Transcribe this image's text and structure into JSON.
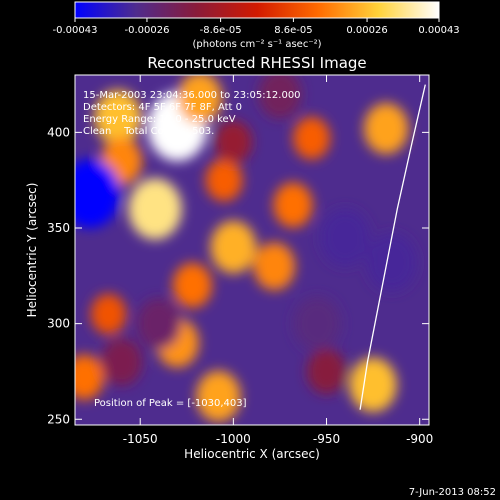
{
  "colorbar": {
    "ticks": [
      "-0.00043",
      "-0.00026",
      "-8.6e-05",
      "8.6e-05",
      "0.00026",
      "0.00043"
    ],
    "tick_values": [
      -0.00043,
      -0.00026,
      -8.6e-05,
      8.6e-05,
      0.00026,
      0.00043
    ],
    "range": [
      -0.00043,
      0.00043
    ],
    "unit_label": "(photons cm⁻² s⁻¹ asec⁻²)",
    "colors": [
      "#0000ff",
      "#4e2c8e",
      "#8a1b3a",
      "#d21a00",
      "#ff6a00",
      "#ffd23a",
      "#ffffff"
    ]
  },
  "chart_data": {
    "type": "heatmap",
    "title": "Reconstructed RHESSI Image",
    "xlabel": "Heliocentric X (arcsec)",
    "ylabel": "Heliocentric Y (arcsec)",
    "xlim": [
      -1085,
      -895
    ],
    "ylim": [
      247,
      430
    ],
    "xticks": [
      "-1050",
      "-1000",
      "-950",
      "-900"
    ],
    "xtick_values": [
      -1050,
      -1000,
      -950,
      -900
    ],
    "yticks": [
      "250",
      "300",
      "350",
      "400"
    ],
    "ytick_values": [
      250,
      300,
      350,
      400
    ],
    "info_lines": [
      "15-Mar-2003 23:04:36.000 to 23:05:12.000",
      "Detectors: 4F 5F 6F 7F 8F, Att 0",
      "Energy Range: 12.0 - 25.0 keV",
      "Clean    Total Counts: 503."
    ],
    "peak_label": "Position of Peak = [-1030,403]",
    "peak": [
      -1030,
      403
    ],
    "blobs": [
      {
        "x": -1030,
        "y": 403,
        "v": 0.00043
      },
      {
        "x": -1042,
        "y": 360,
        "v": 0.00034
      },
      {
        "x": -1062,
        "y": 408,
        "v": 0.00026
      },
      {
        "x": -1060,
        "y": 385,
        "v": 0.00018
      },
      {
        "x": -1018,
        "y": 418,
        "v": 0.00022
      },
      {
        "x": -1005,
        "y": 375,
        "v": 0.00012
      },
      {
        "x": -1000,
        "y": 340,
        "v": 0.00024
      },
      {
        "x": -978,
        "y": 330,
        "v": 0.00018
      },
      {
        "x": -968,
        "y": 362,
        "v": 0.00015
      },
      {
        "x": -958,
        "y": 397,
        "v": 0.00012
      },
      {
        "x": -918,
        "y": 402,
        "v": 0.00022
      },
      {
        "x": -925,
        "y": 268,
        "v": 0.00026
      },
      {
        "x": -1008,
        "y": 262,
        "v": 0.00022
      },
      {
        "x": -1030,
        "y": 290,
        "v": 0.0002
      },
      {
        "x": -1022,
        "y": 320,
        "v": 0.00015
      },
      {
        "x": -1080,
        "y": 272,
        "v": 0.00015
      },
      {
        "x": -1067,
        "y": 305,
        "v": 0.0001
      },
      {
        "x": -1077,
        "y": 368,
        "v": -0.00043
      },
      {
        "x": -940,
        "y": 345,
        "v": -0.0003
      },
      {
        "x": -915,
        "y": 332,
        "v": -0.0003
      },
      {
        "x": -955,
        "y": 300,
        "v": -0.00026
      },
      {
        "x": -1040,
        "y": 300,
        "v": -0.00022
      },
      {
        "x": -1060,
        "y": 280,
        "v": -0.00018
      },
      {
        "x": -975,
        "y": 420,
        "v": -0.0002
      },
      {
        "x": -1000,
        "y": 395,
        "v": -0.00012
      },
      {
        "x": -950,
        "y": 275,
        "v": -0.00015
      }
    ],
    "limb": [
      [
        -897,
        425
      ],
      [
        -904,
        395
      ],
      [
        -912,
        360
      ],
      [
        -920,
        320
      ],
      [
        -928,
        280
      ],
      [
        -932,
        255
      ]
    ],
    "grid": false
  },
  "footer": {
    "timestamp": "7-Jun-2013 08:52"
  }
}
